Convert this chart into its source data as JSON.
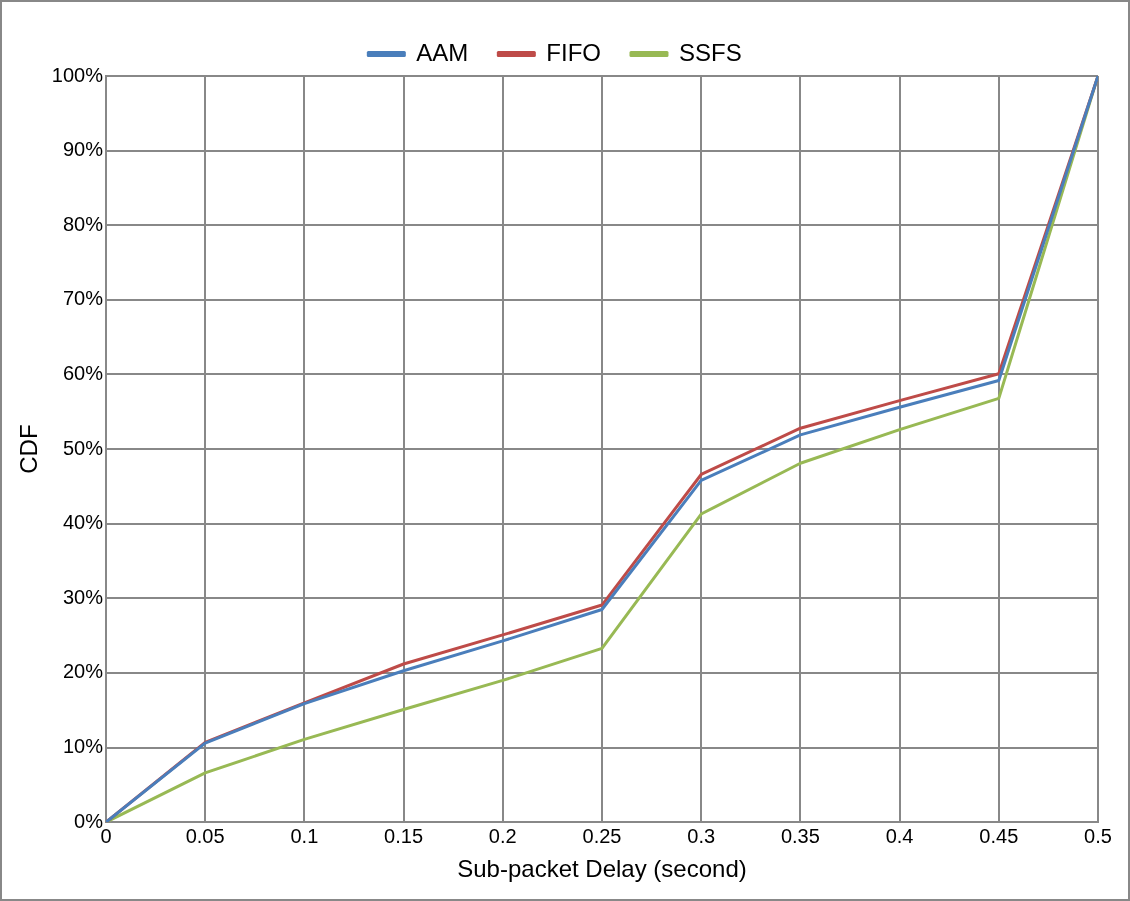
{
  "chart_data": {
    "type": "line",
    "xlabel": "Sub-packet Delay (second)",
    "ylabel": "CDF",
    "x": [
      0,
      0.05,
      0.1,
      0.15,
      0.2,
      0.25,
      0.3,
      0.35,
      0.4,
      0.45,
      0.5
    ],
    "series": [
      {
        "name": "AAM",
        "color": "#4a7ebb",
        "values": [
          0,
          10.6,
          15.9,
          20.3,
          24.3,
          28.5,
          45.8,
          51.9,
          55.6,
          59.2,
          100
        ]
      },
      {
        "name": "FIFO",
        "color": "#be4b48",
        "values": [
          0,
          10.7,
          16,
          21.2,
          25.1,
          29.1,
          46.6,
          52.8,
          56.5,
          60.1,
          100
        ]
      },
      {
        "name": "SSFS",
        "color": "#98b954",
        "values": [
          0,
          6.6,
          11.1,
          15.1,
          19,
          23.3,
          41.3,
          48.1,
          52.6,
          56.8,
          100
        ]
      }
    ],
    "xlim": [
      0,
      0.5
    ],
    "xticks": [
      0,
      0.05,
      0.1,
      0.15,
      0.2,
      0.25,
      0.3,
      0.35,
      0.4,
      0.45,
      0.5
    ],
    "ylim": [
      0,
      100
    ],
    "yticks": [
      {
        "value": 0,
        "label": "0%"
      },
      {
        "value": 10,
        "label": "10%"
      },
      {
        "value": 20,
        "label": "20%"
      },
      {
        "value": 30,
        "label": "30%"
      },
      {
        "value": 40,
        "label": "40%"
      },
      {
        "value": 50,
        "label": "50%"
      },
      {
        "value": 60,
        "label": "60%"
      },
      {
        "value": 70,
        "label": "70%"
      },
      {
        "value": 80,
        "label": "80%"
      },
      {
        "value": 90,
        "label": "90%"
      },
      {
        "value": 100,
        "label": "100%"
      }
    ],
    "grid": true,
    "legend": "top",
    "marker": "none",
    "line_style": "solid"
  }
}
